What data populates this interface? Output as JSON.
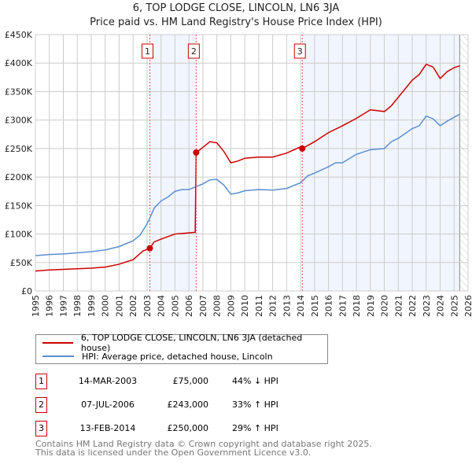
{
  "title": "6, TOP LODGE CLOSE, LINCOLN, LN6 3JA",
  "subtitle": "Price paid vs. HM Land Registry's House Price Index (HPI)",
  "chart_data": {
    "type": "line",
    "xlim": [
      1995,
      2026
    ],
    "ylim": [
      0,
      450000
    ],
    "x_ticks": [
      "1995",
      "1996",
      "1997",
      "1998",
      "1999",
      "2000",
      "2001",
      "2002",
      "2003",
      "2004",
      "2005",
      "2006",
      "2007",
      "2008",
      "2009",
      "2010",
      "2011",
      "2012",
      "2013",
      "2014",
      "2015",
      "2016",
      "2017",
      "2018",
      "2019",
      "2020",
      "2021",
      "2022",
      "2023",
      "2024",
      "2025",
      "2026"
    ],
    "y_ticks": [
      {
        "v": 0,
        "label": "£0"
      },
      {
        "v": 50000,
        "label": "£50K"
      },
      {
        "v": 100000,
        "label": "£100K"
      },
      {
        "v": 150000,
        "label": "£150K"
      },
      {
        "v": 200000,
        "label": "£200K"
      },
      {
        "v": 250000,
        "label": "£250K"
      },
      {
        "v": 300000,
        "label": "£300K"
      },
      {
        "v": 350000,
        "label": "£350K"
      },
      {
        "v": 400000,
        "label": "£400K"
      },
      {
        "v": 450000,
        "label": "£450K"
      }
    ],
    "series": [
      {
        "name": "6, TOP LODGE CLOSE, LINCOLN, LN6 3JA (detached house)",
        "color": "#cc0000",
        "x": [
          1995,
          1996,
          1997,
          1998,
          1999,
          2000,
          2001,
          2002,
          2002.7,
          2003.2,
          2003.5,
          2004,
          2005,
          2005.5,
          2006,
          2006.45,
          2006.52,
          2007,
          2007.5,
          2008,
          2008.5,
          2009,
          2009.5,
          2010,
          2011,
          2012,
          2013,
          2014,
          2014.12,
          2015,
          2016,
          2017,
          2018,
          2019,
          2020,
          2020.5,
          2021,
          2022,
          2022.5,
          2023,
          2023.5,
          2024,
          2024.5,
          2025,
          2025.4
        ],
        "y": [
          35,
          37,
          38,
          39,
          40,
          42,
          47,
          55,
          70,
          75,
          86,
          91,
          100,
          101,
          102,
          103,
          243,
          252,
          262,
          260,
          245,
          225,
          228,
          233,
          235,
          235,
          242,
          253,
          250,
          262,
          278,
          290,
          303,
          318,
          315,
          325,
          340,
          370,
          380,
          398,
          393,
          373,
          385,
          392,
          395
        ]
      },
      {
        "name": "HPI: Average price, detached house, Lincoln",
        "color": "#5b8fd1",
        "x": [
          1995,
          1996,
          1997,
          1998,
          1999,
          2000,
          2001,
          2002,
          2002.5,
          2003,
          2003.2,
          2003.5,
          2004,
          2004.5,
          2005,
          2005.5,
          2006,
          2006.5,
          2007,
          2007.5,
          2008,
          2008.5,
          2009,
          2009.5,
          2010,
          2011,
          2012,
          2013,
          2014,
          2014.5,
          2015,
          2016,
          2016.5,
          2017,
          2018,
          2019,
          2020,
          2020.5,
          2021,
          2022,
          2022.5,
          2023,
          2023.5,
          2024,
          2024.5,
          2025,
          2025.4
        ],
        "y": [
          62,
          64,
          65,
          67,
          69,
          72,
          78,
          88,
          98,
          118,
          128,
          145,
          158,
          165,
          175,
          178,
          178,
          183,
          188,
          195,
          196,
          186,
          170,
          172,
          176,
          178,
          177,
          180,
          190,
          202,
          207,
          218,
          225,
          225,
          240,
          248,
          250,
          262,
          268,
          285,
          290,
          307,
          302,
          290,
          298,
          305,
          310
        ]
      }
    ],
    "y_unit": "thousands GBP",
    "sales": [
      {
        "n": "1",
        "x": 2003.2,
        "y": 75,
        "date": "14-MAR-2003",
        "price": "£75,000",
        "hpi": "44% ↓ HPI"
      },
      {
        "n": "2",
        "x": 2006.52,
        "y": 243,
        "date": "07-JUL-2006",
        "price": "£243,000",
        "hpi": "33% ↑ HPI"
      },
      {
        "n": "3",
        "x": 2014.12,
        "y": 250,
        "date": "13-FEB-2014",
        "price": "£250,000",
        "hpi": "29% ↑ HPI"
      }
    ],
    "shaded": [
      [
        2003.2,
        2006.52
      ],
      [
        2014.12,
        2025.4
      ]
    ],
    "hatched_from": 2025.4
  },
  "footer": [
    "Contains HM Land Registry data © Crown copyright and database right 2025.",
    "This data is licensed under the Open Government Licence v3.0."
  ]
}
